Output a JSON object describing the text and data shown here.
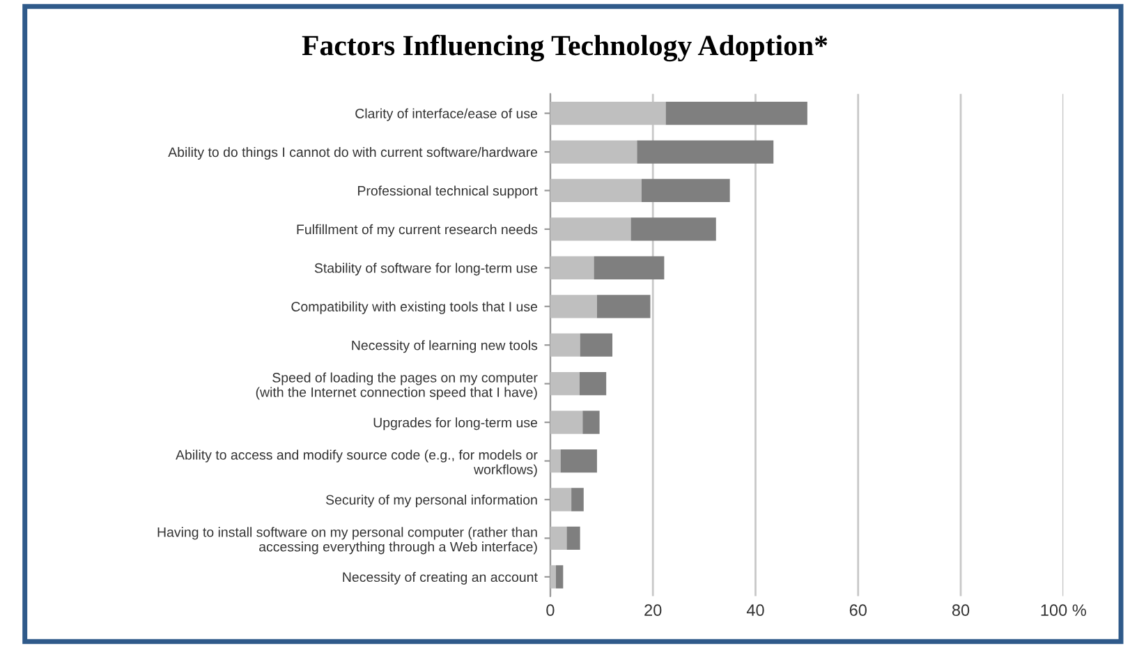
{
  "chart_data": {
    "type": "bar",
    "title": "Factors Influencing Technology Adoption*",
    "orientation": "horizontal",
    "stacked": true,
    "categories": [
      "Clarity of interface/ease of use",
      "Ability to do things I cannot do with current software/hardware",
      "Professional technical support",
      "Fulfillment of my current research needs",
      "Stability of software for long-term use",
      "Compatibility with existing tools that I use",
      "Necessity of learning new tools",
      "Speed of loading the pages on my computer\n(with the Internet connection speed that I have)",
      "Upgrades for long-term use",
      "Ability to access and modify source code (e.g., for models or\nworkflows)",
      "Security of my personal information",
      "Having to install software on my personal computer (rather than\naccessing everything through a Web interface)",
      "Necessity of creating an account"
    ],
    "series": [
      {
        "color": "#bfbfbf",
        "values": [
          22.5,
          16.9,
          17.8,
          15.7,
          8.5,
          9.1,
          5.8,
          5.7,
          6.3,
          2.0,
          4.1,
          3.2,
          1.1
        ]
      },
      {
        "color": "#7f7f7f",
        "values": [
          27.6,
          26.6,
          17.2,
          16.6,
          13.7,
          10.4,
          6.3,
          5.2,
          3.3,
          7.1,
          2.4,
          2.6,
          1.4
        ]
      }
    ],
    "xlim": [
      0,
      100
    ],
    "xticks": [
      0,
      20,
      40,
      60,
      80,
      {
        "value": 100,
        "label": "100 %"
      }
    ],
    "grid": "x",
    "legend": false
  }
}
